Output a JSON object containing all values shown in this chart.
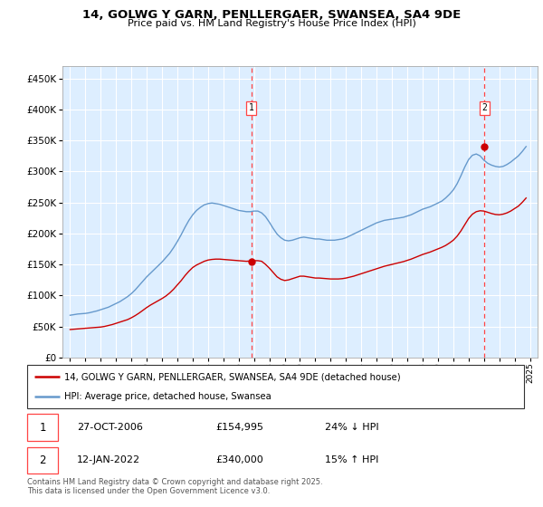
{
  "title": "14, GOLWG Y GARN, PENLLERGAER, SWANSEA, SA4 9DE",
  "subtitle": "Price paid vs. HM Land Registry's House Price Index (HPI)",
  "property_label": "14, GOLWG Y GARN, PENLLERGAER, SWANSEA, SA4 9DE (detached house)",
  "hpi_label": "HPI: Average price, detached house, Swansea",
  "sale1_date": "27-OCT-2006",
  "sale1_price": 154995,
  "sale1_pct": "24% ↓ HPI",
  "sale2_date": "12-JAN-2022",
  "sale2_price": 340000,
  "sale2_pct": "15% ↑ HPI",
  "sale1_x": 2006.82,
  "sale2_x": 2022.04,
  "ylabel_ticks": [
    0,
    50000,
    100000,
    150000,
    200000,
    250000,
    300000,
    350000,
    400000,
    450000
  ],
  "ylim": [
    0,
    470000
  ],
  "xlim_start": 1994.5,
  "xlim_end": 2025.5,
  "background_color": "#ddeeff",
  "red_line_color": "#cc0000",
  "blue_line_color": "#6699cc",
  "dashed_line_color": "#ff4444",
  "grid_color": "#ffffff",
  "footer_text": "Contains HM Land Registry data © Crown copyright and database right 2025.\nThis data is licensed under the Open Government Licence v3.0.",
  "hpi_data_years": [
    1995.0,
    1995.25,
    1995.5,
    1995.75,
    1996.0,
    1996.25,
    1996.5,
    1996.75,
    1997.0,
    1997.25,
    1997.5,
    1997.75,
    1998.0,
    1998.25,
    1998.5,
    1998.75,
    1999.0,
    1999.25,
    1999.5,
    1999.75,
    2000.0,
    2000.25,
    2000.5,
    2000.75,
    2001.0,
    2001.25,
    2001.5,
    2001.75,
    2002.0,
    2002.25,
    2002.5,
    2002.75,
    2003.0,
    2003.25,
    2003.5,
    2003.75,
    2004.0,
    2004.25,
    2004.5,
    2004.75,
    2005.0,
    2005.25,
    2005.5,
    2005.75,
    2006.0,
    2006.25,
    2006.5,
    2006.75,
    2007.0,
    2007.25,
    2007.5,
    2007.75,
    2008.0,
    2008.25,
    2008.5,
    2008.75,
    2009.0,
    2009.25,
    2009.5,
    2009.75,
    2010.0,
    2010.25,
    2010.5,
    2010.75,
    2011.0,
    2011.25,
    2011.5,
    2011.75,
    2012.0,
    2012.25,
    2012.5,
    2012.75,
    2013.0,
    2013.25,
    2013.5,
    2013.75,
    2014.0,
    2014.25,
    2014.5,
    2014.75,
    2015.0,
    2015.25,
    2015.5,
    2015.75,
    2016.0,
    2016.25,
    2016.5,
    2016.75,
    2017.0,
    2017.25,
    2017.5,
    2017.75,
    2018.0,
    2018.25,
    2018.5,
    2018.75,
    2019.0,
    2019.25,
    2019.5,
    2019.75,
    2020.0,
    2020.25,
    2020.5,
    2020.75,
    2021.0,
    2021.25,
    2021.5,
    2021.75,
    2022.0,
    2022.25,
    2022.5,
    2022.75,
    2023.0,
    2023.25,
    2023.5,
    2023.75,
    2024.0,
    2024.25,
    2024.5,
    2024.75
  ],
  "hpi_values": [
    68000,
    69000,
    70000,
    70500,
    71000,
    72000,
    73500,
    75000,
    77000,
    79000,
    81000,
    84000,
    87000,
    90000,
    94000,
    98000,
    103000,
    109000,
    116000,
    123000,
    130000,
    136000,
    142000,
    148000,
    154000,
    161000,
    168000,
    177000,
    187000,
    198000,
    210000,
    221000,
    230000,
    237000,
    242000,
    246000,
    248000,
    249000,
    248000,
    247000,
    245000,
    243000,
    241000,
    239000,
    237000,
    236000,
    235000,
    235000,
    236000,
    236000,
    233000,
    227000,
    218000,
    208000,
    199000,
    193000,
    189000,
    188000,
    189000,
    191000,
    193000,
    194000,
    193000,
    192000,
    191000,
    191000,
    190000,
    189000,
    189000,
    189000,
    190000,
    191000,
    193000,
    196000,
    199000,
    202000,
    205000,
    208000,
    211000,
    214000,
    217000,
    219000,
    221000,
    222000,
    223000,
    224000,
    225000,
    226000,
    228000,
    230000,
    233000,
    236000,
    239000,
    241000,
    243000,
    246000,
    249000,
    252000,
    257000,
    263000,
    270000,
    280000,
    293000,
    307000,
    319000,
    326000,
    328000,
    325000,
    318000,
    313000,
    310000,
    308000,
    307000,
    308000,
    311000,
    315000,
    320000,
    325000,
    332000,
    340000
  ],
  "property_data_years": [
    1995.0,
    1995.25,
    1995.5,
    1995.75,
    1996.0,
    1996.25,
    1996.5,
    1996.75,
    1997.0,
    1997.25,
    1997.5,
    1997.75,
    1998.0,
    1998.25,
    1998.5,
    1998.75,
    1999.0,
    1999.25,
    1999.5,
    1999.75,
    2000.0,
    2000.25,
    2000.5,
    2000.75,
    2001.0,
    2001.25,
    2001.5,
    2001.75,
    2002.0,
    2002.25,
    2002.5,
    2002.75,
    2003.0,
    2003.25,
    2003.5,
    2003.75,
    2004.0,
    2004.25,
    2004.5,
    2004.75,
    2005.0,
    2005.25,
    2005.5,
    2005.75,
    2006.0,
    2006.25,
    2006.5,
    2006.75,
    2007.0,
    2007.25,
    2007.5,
    2007.75,
    2008.0,
    2008.25,
    2008.5,
    2008.75,
    2009.0,
    2009.25,
    2009.5,
    2009.75,
    2010.0,
    2010.25,
    2010.5,
    2010.75,
    2011.0,
    2011.25,
    2011.5,
    2011.75,
    2012.0,
    2012.25,
    2012.5,
    2012.75,
    2013.0,
    2013.25,
    2013.5,
    2013.75,
    2014.0,
    2014.25,
    2014.5,
    2014.75,
    2015.0,
    2015.25,
    2015.5,
    2015.75,
    2016.0,
    2016.25,
    2016.5,
    2016.75,
    2017.0,
    2017.25,
    2017.5,
    2017.75,
    2018.0,
    2018.25,
    2018.5,
    2018.75,
    2019.0,
    2019.25,
    2019.5,
    2019.75,
    2020.0,
    2020.25,
    2020.5,
    2020.75,
    2021.0,
    2021.25,
    2021.5,
    2021.75,
    2022.0,
    2022.25,
    2022.5,
    2022.75,
    2023.0,
    2023.25,
    2023.5,
    2023.75,
    2024.0,
    2024.25,
    2024.5,
    2024.75
  ],
  "property_values": [
    45000,
    45500,
    46000,
    46500,
    47000,
    47500,
    48000,
    48500,
    49000,
    50000,
    51500,
    53000,
    55000,
    57000,
    59000,
    61000,
    64000,
    67500,
    71500,
    76000,
    80500,
    84500,
    88000,
    91500,
    95000,
    99000,
    104000,
    110000,
    117000,
    124000,
    132000,
    139000,
    145000,
    149000,
    152000,
    155000,
    157000,
    158000,
    158500,
    158500,
    158000,
    157500,
    157000,
    156500,
    156000,
    155500,
    155000,
    155500,
    156000,
    156000,
    155000,
    150000,
    144000,
    137000,
    130000,
    126000,
    124000,
    125000,
    127000,
    129000,
    131000,
    131000,
    130000,
    129000,
    128000,
    128000,
    127500,
    127000,
    126500,
    126500,
    126500,
    127000,
    128000,
    129500,
    131000,
    133000,
    135000,
    137000,
    139000,
    141000,
    143000,
    145000,
    147000,
    148500,
    150000,
    151500,
    153000,
    154500,
    156500,
    158500,
    161000,
    163500,
    166000,
    168000,
    170000,
    172500,
    175000,
    177500,
    180500,
    184500,
    189000,
    195500,
    204000,
    214000,
    224000,
    231000,
    235000,
    236500,
    236000,
    234000,
    232000,
    230500,
    230000,
    231000,
    233000,
    236000,
    240000,
    244000,
    250000,
    257000
  ]
}
